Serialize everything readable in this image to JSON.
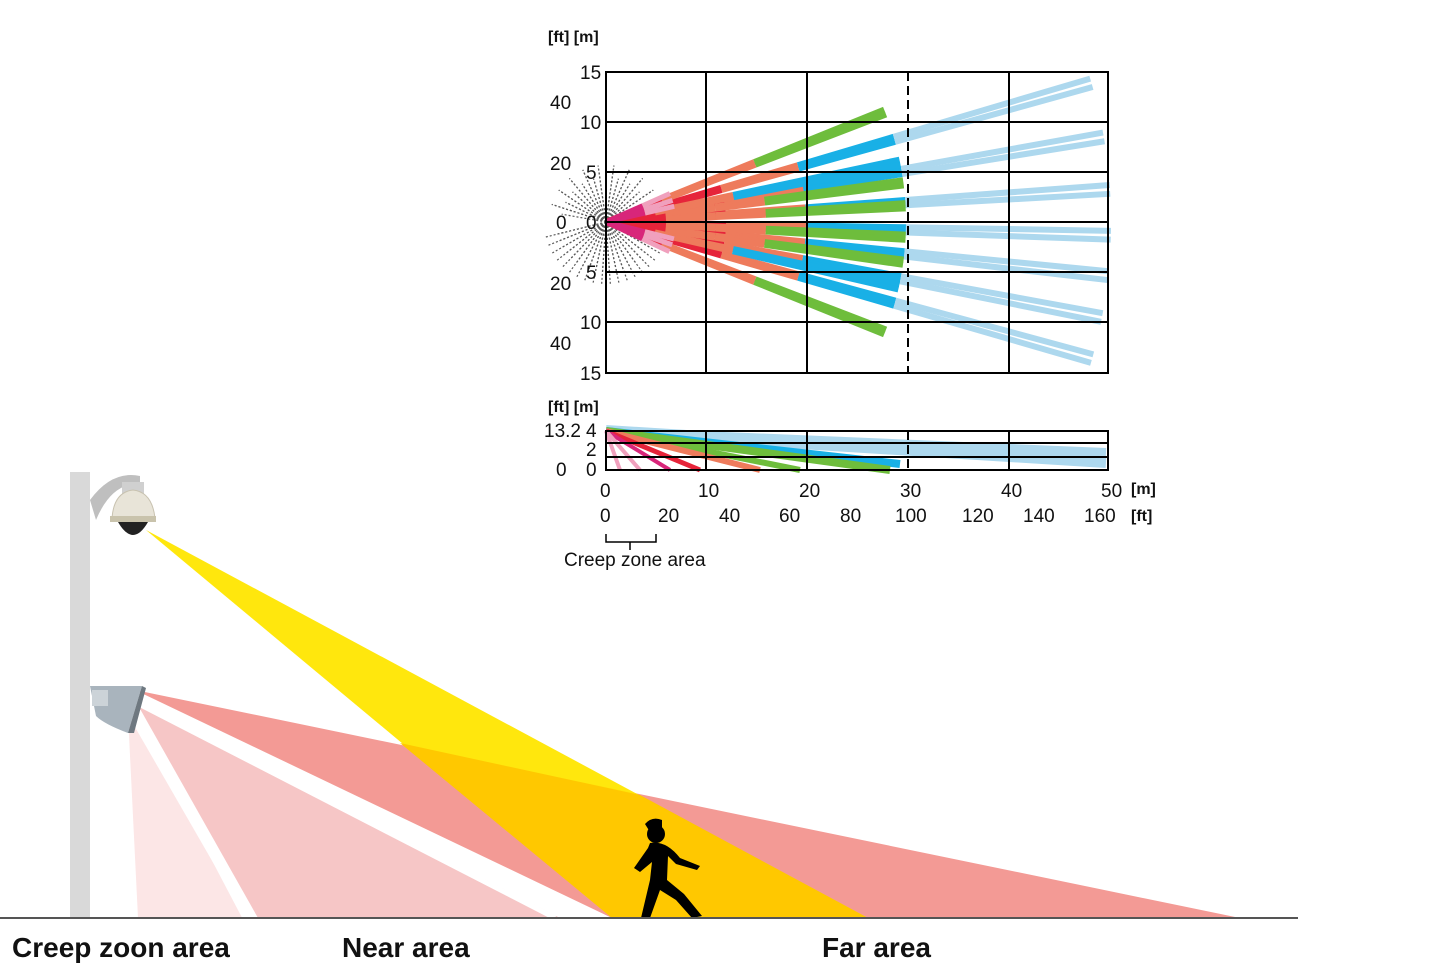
{
  "colors": {
    "far_beam": "#add8ee",
    "mid_beam": "#19b0e6",
    "green_beam": "#6ebd3c",
    "orange_beam": "#ee7b5c",
    "red_beam": "#e6243a",
    "magenta_beam": "#d8267a",
    "pink_beam": "#f0a0bd",
    "creep_fan": "#5a5a5a",
    "camera_fov": "#ffe600",
    "fov_overlap": "#ffc800",
    "sensor_far": "#f39a95",
    "sensor_near": "#f6c6c6",
    "sensor_creep": "#fce6e6",
    "pole": "#d9d9d9"
  },
  "top_view": {
    "unit_label": "[ft] [m]",
    "m_ticks": [
      "15",
      "10",
      "5",
      "0",
      "5",
      "10",
      "15"
    ],
    "ft_ticks": [
      "40",
      "20",
      "0",
      "20",
      "40"
    ]
  },
  "side_view": {
    "unit_label": "[ft] [m]",
    "m_ticks": [
      "4",
      "2",
      "0"
    ],
    "ft_ticks": [
      "13.2",
      "0"
    ]
  },
  "x_axis": {
    "m_ticks": [
      "0",
      "10",
      "20",
      "30",
      "40",
      "50"
    ],
    "m_unit": "[m]",
    "ft_ticks": [
      "0",
      "20",
      "40",
      "60",
      "80",
      "100",
      "120",
      "140",
      "160"
    ],
    "ft_unit": "[ft]"
  },
  "creep_label": "Creep zone area",
  "area_labels": {
    "creep": "Creep zoon area",
    "near": "Near area",
    "far": "Far area"
  }
}
